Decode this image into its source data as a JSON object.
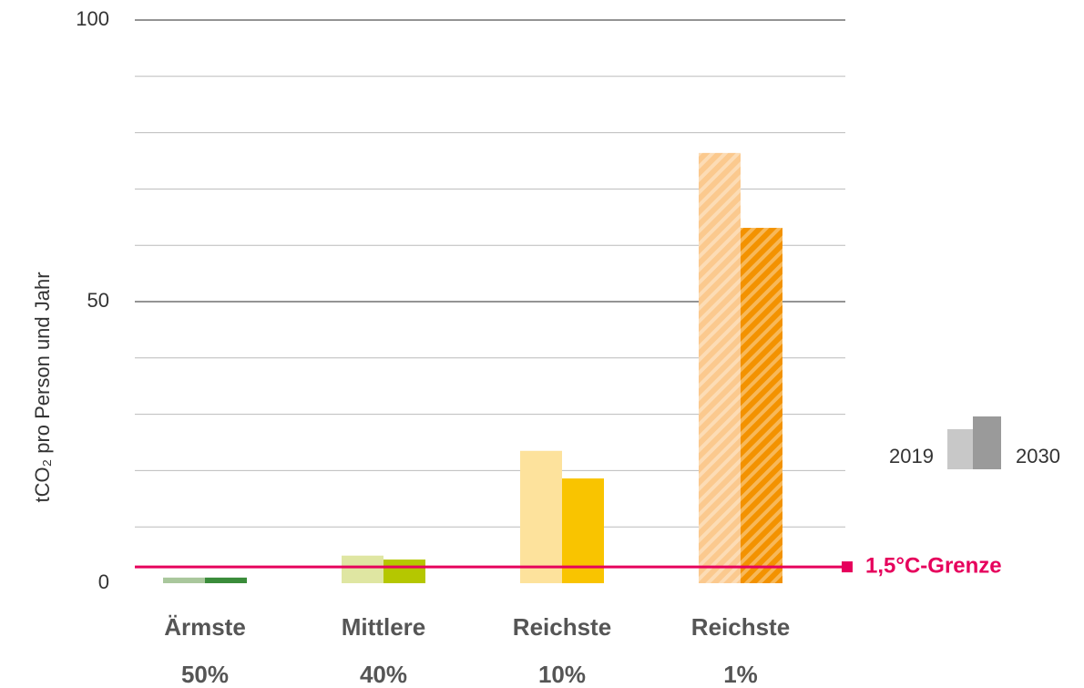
{
  "chart_data": {
    "type": "bar",
    "y_label": "tCO₂ pro Person und Jahr",
    "categories": [
      [
        "Ärmste",
        "50%"
      ],
      [
        "Mittlere",
        "40%"
      ],
      [
        "Reichste",
        "10%"
      ],
      [
        "Reichste",
        "1%"
      ]
    ],
    "series": [
      {
        "name": "2019",
        "color": "#c8c8c8",
        "bar_colors": [
          "#a9c79c",
          "#dfe6a2",
          "#fde29c",
          "#fbc98e"
        ],
        "values": [
          1.0,
          4.9,
          23.5,
          76.4
        ]
      },
      {
        "name": "2030",
        "color": "#9a9a9a",
        "bar_colors": [
          "#3a8c3a",
          "#b5c700",
          "#f9c400",
          "#f39200"
        ],
        "values": [
          1.0,
          4.2,
          18.6,
          63.1
        ]
      }
    ],
    "hatched": [
      false,
      false,
      false,
      true
    ],
    "ylim": [
      0,
      100
    ],
    "yticks": [
      0,
      50,
      100
    ],
    "minor_yticks": [
      10,
      20,
      30,
      40,
      60,
      70,
      80,
      90
    ],
    "grid": true,
    "reference_line": {
      "value": 2.9,
      "label": "1,5°C-Grenze",
      "color": "#e6005c"
    }
  }
}
